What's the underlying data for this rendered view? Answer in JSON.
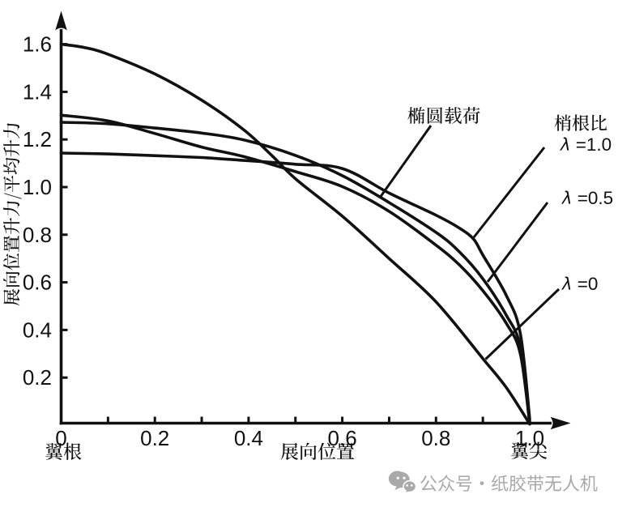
{
  "figure": {
    "background": "#ffffff",
    "ink_color": "#111111",
    "watermark_color": "#a9a9a9"
  },
  "chart_data": {
    "type": "line",
    "title": "",
    "xlabel": "展向位置",
    "ylabel": "展向位置升力/平均升力",
    "x_root_label": "翼根",
    "x_tip_label": "翼尖",
    "xlim": [
      0,
      1.0
    ],
    "ylim": [
      0,
      1.7
    ],
    "x_ticks": [
      0,
      0.1,
      0.2,
      0.3,
      0.4,
      0.5,
      0.6,
      0.7,
      0.8,
      0.9,
      1.0
    ],
    "x_tick_labels": [
      "0",
      "0.2",
      "0.4",
      "0.6",
      "0.8",
      "1.0"
    ],
    "y_ticks": [
      0.2,
      0.4,
      0.6,
      0.8,
      1.0,
      1.2,
      1.4,
      1.6
    ],
    "y_tick_labels": [
      "0.2",
      "0.4",
      "0.6",
      "0.8",
      "1.0",
      "1.2",
      "1.4",
      "1.6"
    ],
    "grid": false,
    "legend_position": "annotated-on-curves",
    "series": [
      {
        "name": "椭圆载荷",
        "points": [
          [
            0,
            1.272
          ],
          [
            0.1,
            1.266
          ],
          [
            0.2,
            1.248
          ],
          [
            0.3,
            1.227
          ],
          [
            0.39,
            1.198
          ],
          [
            0.5,
            1.133
          ],
          [
            0.6,
            1.048
          ],
          [
            0.7,
            0.935
          ],
          [
            0.8,
            0.81
          ],
          [
            0.85,
            0.728
          ],
          [
            0.9,
            0.615
          ],
          [
            0.95,
            0.462
          ],
          [
            0.98,
            0.33
          ],
          [
            1.0,
            0.015
          ]
        ]
      },
      {
        "name": "λ=1.0",
        "points": [
          [
            0,
            1.143
          ],
          [
            0.1,
            1.139
          ],
          [
            0.2,
            1.132
          ],
          [
            0.3,
            1.124
          ],
          [
            0.39,
            1.112
          ],
          [
            0.5,
            1.096
          ],
          [
            0.6,
            1.078
          ],
          [
            0.7,
            0.975
          ],
          [
            0.8,
            0.882
          ],
          [
            0.85,
            0.828
          ],
          [
            0.88,
            0.782
          ],
          [
            0.9,
            0.715
          ],
          [
            0.95,
            0.545
          ],
          [
            0.98,
            0.385
          ],
          [
            1.0,
            0.025
          ]
        ]
      },
      {
        "name": "λ=0.5",
        "points": [
          [
            0,
            1.302
          ],
          [
            0.1,
            1.278
          ],
          [
            0.2,
            1.225
          ],
          [
            0.3,
            1.168
          ],
          [
            0.39,
            1.128
          ],
          [
            0.5,
            1.065
          ],
          [
            0.6,
            1.002
          ],
          [
            0.7,
            0.898
          ],
          [
            0.8,
            0.756
          ],
          [
            0.85,
            0.673
          ],
          [
            0.9,
            0.565
          ],
          [
            0.95,
            0.428
          ],
          [
            0.98,
            0.3
          ],
          [
            1.0,
            0.005
          ]
        ]
      },
      {
        "name": "λ=0",
        "points": [
          [
            0,
            1.6
          ],
          [
            0.05,
            1.586
          ],
          [
            0.1,
            1.558
          ],
          [
            0.2,
            1.475
          ],
          [
            0.3,
            1.365
          ],
          [
            0.39,
            1.24
          ],
          [
            0.45,
            1.132
          ],
          [
            0.5,
            1.035
          ],
          [
            0.6,
            0.878
          ],
          [
            0.7,
            0.7
          ],
          [
            0.8,
            0.518
          ],
          [
            0.9,
            0.28
          ],
          [
            0.95,
            0.158
          ],
          [
            1.0,
            0.005
          ]
        ]
      }
    ]
  },
  "annotations": {
    "elliptic_label": "椭圆载荷",
    "taper_ratio_header": "梢根比",
    "lambda_1_0": "λ =1.0",
    "lambda_0_5": "λ =0.5",
    "lambda_0": "λ =0"
  },
  "watermark": {
    "icon": "wechat-icon",
    "text": "公众号·纸胶带无人机"
  }
}
